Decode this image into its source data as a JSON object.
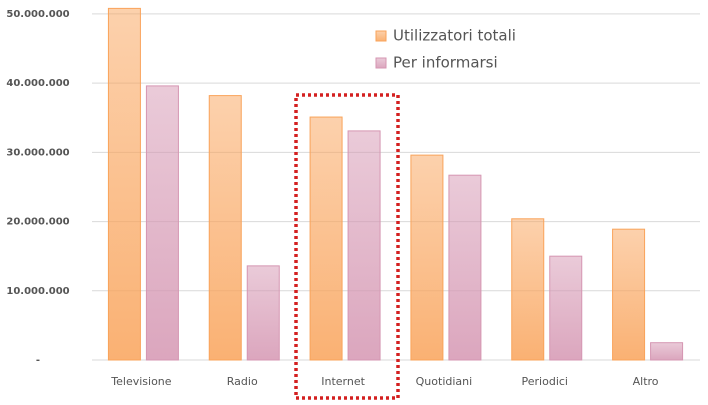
{
  "chart_data": {
    "type": "bar",
    "categories": [
      "Televisione",
      "Radio",
      "Internet",
      "Quotidiani",
      "Periodici",
      "Altro"
    ],
    "series": [
      {
        "name": "Utilizzatori totali",
        "color": "#f9a35a",
        "values": [
          50800000,
          38200000,
          35100000,
          29600000,
          20400000,
          18900000
        ]
      },
      {
        "name": "Per informarsi",
        "color": "#d596b2",
        "values": [
          39600000,
          13600000,
          33100000,
          26700000,
          15000000,
          2500000
        ]
      }
    ],
    "ylim": [
      0,
      51000000
    ],
    "yticks": [
      {
        "value": 0,
        "label": "-"
      },
      {
        "value": 10000000,
        "label": "10.000.000"
      },
      {
        "value": 20000000,
        "label": "20.000.000"
      },
      {
        "value": 30000000,
        "label": "30.000.000"
      },
      {
        "value": 40000000,
        "label": "40.000.000"
      },
      {
        "value": 50000000,
        "label": "50.000.000"
      }
    ],
    "grid": true
  }
}
